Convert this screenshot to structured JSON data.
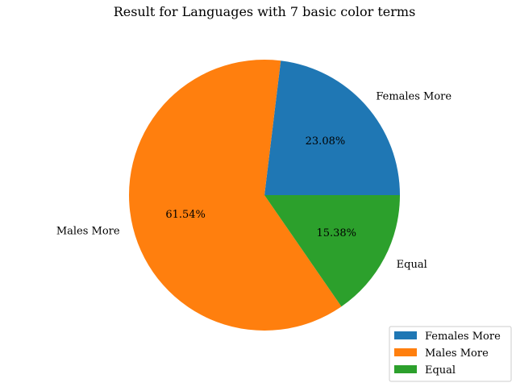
{
  "chart_data": {
    "type": "pie",
    "title": "Result for Languages with 7 basic color terms",
    "slices": [
      {
        "label": "Females More",
        "value": 23.08,
        "pct_label": "23.08%",
        "color": "#1f77b4"
      },
      {
        "label": "Males More",
        "value": 61.54,
        "pct_label": "61.54%",
        "color": "#ff7f0e"
      },
      {
        "label": "Equal",
        "value": 15.38,
        "pct_label": "15.38%",
        "color": "#2ca02c"
      }
    ],
    "start_angle_deg": 0,
    "direction": "counterclockwise",
    "legend": {
      "placement": "lower-right",
      "entries": [
        "Females More",
        "Males More",
        "Equal"
      ]
    }
  }
}
